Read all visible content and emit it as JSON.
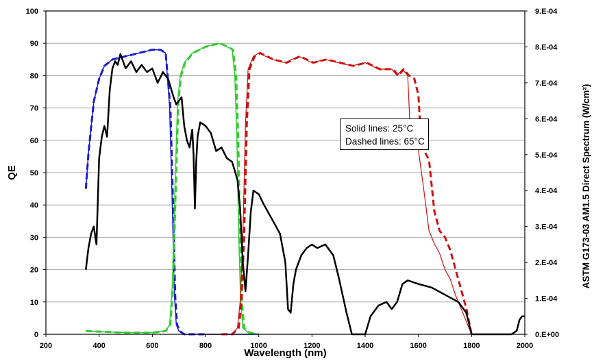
{
  "chart_data": {
    "type": "line",
    "title": "",
    "xlabel": "Wavelength (nm)",
    "ylabel": "QE",
    "y2label": "ASTM G173-03 AM1.5 Direct Spectrum (W/cm²)",
    "xlim": [
      200,
      2000
    ],
    "ylim": [
      0,
      100
    ],
    "y2lim": [
      0,
      0.0009
    ],
    "grid": true,
    "x_ticks": [
      "200",
      "400",
      "600",
      "800",
      "1000",
      "1200",
      "1400",
      "1600",
      "1800",
      "2000"
    ],
    "y_ticks": [
      "0",
      "10",
      "20",
      "30",
      "40",
      "50",
      "60",
      "70",
      "80",
      "90",
      "100"
    ],
    "y2_ticks": [
      "0.E+00",
      "1.E-04",
      "2.E-04",
      "3.E-04",
      "4.E-04",
      "5.E-04",
      "6.E-04",
      "7.E-04",
      "8.E-04",
      "9.E-04"
    ],
    "annotations": [
      "Solid lines: 25°C",
      "Dashed lines: 65°C"
    ],
    "colors": {
      "blue": "#1a1ad0",
      "green": "#33cc33",
      "red": "#cc1111",
      "spectrum": "#000000",
      "grid": "#a6a6a6"
    },
    "series": [
      {
        "color": "blue",
        "style": "solid",
        "x": [
          350,
          360,
          380,
          400,
          420,
          450,
          500,
          550,
          600,
          630,
          650,
          665,
          675,
          683,
          690,
          700,
          720,
          760,
          800,
          850,
          900,
          950,
          1000
        ],
        "y": [
          45,
          56,
          72,
          79,
          83,
          85,
          86,
          87,
          88,
          88,
          87,
          70,
          40,
          12,
          3,
          1,
          0,
          0,
          0,
          0,
          0,
          0,
          0
        ]
      },
      {
        "color": "blue",
        "style": "dashed",
        "x": [
          350,
          360,
          380,
          400,
          420,
          450,
          500,
          550,
          600,
          630,
          650,
          668,
          678,
          686,
          693,
          703,
          720,
          760,
          800
        ],
        "y": [
          45,
          56,
          72,
          79,
          83,
          85,
          86,
          87,
          88,
          88,
          87,
          70,
          40,
          12,
          3,
          1,
          0,
          0,
          0
        ]
      },
      {
        "color": "green",
        "style": "solid",
        "x": [
          350,
          500,
          600,
          650,
          665,
          675,
          685,
          695,
          705,
          720,
          750,
          800,
          850,
          880,
          900,
          910,
          918,
          925,
          932,
          940,
          960,
          1000
        ],
        "y": [
          1,
          0.5,
          0.5,
          1,
          3,
          15,
          45,
          72,
          80,
          84,
          87,
          89,
          90,
          89,
          88,
          80,
          60,
          30,
          10,
          2,
          0.5,
          0
        ]
      },
      {
        "color": "green",
        "style": "dashed",
        "x": [
          350,
          500,
          600,
          650,
          668,
          678,
          688,
          698,
          708,
          723,
          753,
          803,
          853,
          883,
          903,
          915,
          923,
          930,
          937,
          945,
          965,
          1000
        ],
        "y": [
          1,
          0.5,
          0.5,
          1,
          3,
          15,
          45,
          72,
          80,
          84,
          87,
          89,
          90,
          89,
          88,
          80,
          60,
          30,
          10,
          2,
          0.5,
          0
        ]
      },
      {
        "color": "red",
        "style": "solid",
        "x": [
          780,
          860,
          900,
          920,
          930,
          940,
          950,
          960,
          980,
          1000,
          1050,
          1100,
          1150,
          1200,
          1250,
          1300,
          1350,
          1400,
          1450,
          1500,
          1520,
          1540,
          1560,
          1570,
          1580,
          1600,
          1620,
          1640,
          1660,
          1680,
          1700,
          1720,
          1740,
          1760,
          1780,
          1800
        ],
        "y": [
          0,
          0,
          0,
          2,
          10,
          30,
          65,
          82,
          86,
          87,
          85,
          84,
          86,
          84,
          85,
          84,
          83,
          84,
          82,
          82,
          80,
          82,
          80,
          62,
          60,
          57,
          45,
          32,
          28,
          25,
          20,
          17,
          12,
          8,
          4,
          0
        ]
      },
      {
        "color": "red",
        "style": "dashed",
        "x": [
          860,
          900,
          925,
          935,
          945,
          955,
          965,
          985,
          1005,
          1055,
          1105,
          1155,
          1205,
          1255,
          1305,
          1355,
          1405,
          1455,
          1505,
          1525,
          1545,
          1565,
          1585,
          1600,
          1610,
          1620,
          1640,
          1660,
          1680,
          1700,
          1720,
          1740,
          1760,
          1780,
          1800
        ],
        "y": [
          0,
          0,
          2,
          10,
          30,
          65,
          82,
          86,
          87,
          85,
          84,
          86,
          84,
          85,
          84,
          83,
          84,
          82,
          82,
          80,
          82,
          80,
          79,
          74,
          60,
          57,
          54,
          38,
          32,
          30,
          26,
          20,
          14,
          8,
          0
        ]
      },
      {
        "color": "spectrum",
        "style": "solid",
        "axis": "y2",
        "x": [
          350,
          360,
          370,
          380,
          390,
          400,
          410,
          420,
          430,
          440,
          450,
          460,
          470,
          480,
          490,
          500,
          520,
          540,
          560,
          580,
          600,
          620,
          640,
          660,
          680,
          690,
          700,
          710,
          720,
          730,
          740,
          750,
          755,
          760,
          765,
          770,
          780,
          800,
          820,
          840,
          860,
          880,
          900,
          920,
          930,
          940,
          950,
          960,
          970,
          980,
          1000,
          1020,
          1050,
          1080,
          1100,
          1110,
          1120,
          1130,
          1140,
          1150,
          1160,
          1180,
          1200,
          1220,
          1250,
          1280,
          1300,
          1330,
          1350,
          1360,
          1400,
          1420,
          1450,
          1480,
          1500,
          1520,
          1540,
          1560,
          1600,
          1650,
          1700,
          1750,
          1780,
          1800,
          1820,
          1850,
          1900,
          1950,
          1970,
          1980,
          1990,
          2000
        ],
        "y": [
          0.00018,
          0.00024,
          0.00028,
          0.0003,
          0.00025,
          0.00049,
          0.00055,
          0.00058,
          0.00055,
          0.00068,
          0.00074,
          0.00076,
          0.00075,
          0.00078,
          0.00076,
          0.00074,
          0.00076,
          0.00073,
          0.00075,
          0.00073,
          0.00074,
          0.0007,
          0.00073,
          0.00071,
          0.00066,
          0.00064,
          0.00065,
          0.00066,
          0.00058,
          0.00054,
          0.00052,
          0.00057,
          0.0005,
          0.00035,
          0.00048,
          0.00055,
          0.00059,
          0.00058,
          0.00056,
          0.00051,
          0.00052,
          0.00049,
          0.00048,
          0.00043,
          0.00035,
          0.0002,
          0.00012,
          0.00022,
          0.00034,
          0.0004,
          0.00039,
          0.00036,
          0.00032,
          0.00028,
          0.0002,
          7e-05,
          6e-05,
          0.00014,
          0.00018,
          0.0002,
          0.00022,
          0.00024,
          0.00025,
          0.00024,
          0.00025,
          0.00022,
          0.00016,
          6e-05,
          0.0,
          0.0,
          0.0,
          5e-05,
          8e-05,
          9e-05,
          7e-05,
          9e-05,
          0.00014,
          0.00015,
          0.00014,
          0.00013,
          0.00011,
          9e-05,
          6e-05,
          0.0,
          0.0,
          0.0,
          0.0,
          0.0,
          1e-05,
          4e-05,
          5e-05,
          5e-05
        ]
      }
    ]
  }
}
